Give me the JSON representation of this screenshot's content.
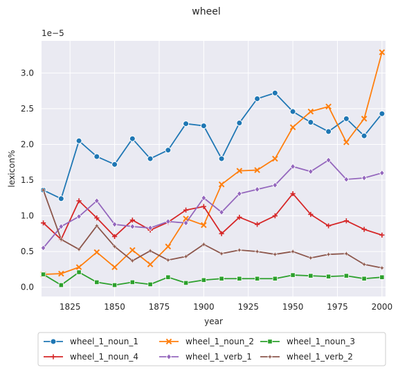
{
  "chart_data": {
    "type": "line",
    "title": "wheel",
    "xlabel": "year",
    "ylabel": "lexicon%",
    "y_scale_label": "1e−5",
    "xlim": [
      1809,
      2002
    ],
    "ylim": [
      -0.13,
      3.45
    ],
    "x_ticks": [
      1825,
      1850,
      1875,
      1900,
      1925,
      1950,
      1975,
      2000
    ],
    "y_ticks": [
      0.0,
      0.5,
      1.0,
      1.5,
      2.0,
      2.5,
      3.0
    ],
    "y_tick_labels": [
      "0.0",
      "0.5",
      "1.0",
      "1.5",
      "2.0",
      "2.5",
      "3.0"
    ],
    "grid": true,
    "legend_position": "bottom",
    "x": [
      1810,
      1820,
      1830,
      1840,
      1850,
      1860,
      1870,
      1880,
      1890,
      1900,
      1910,
      1920,
      1930,
      1940,
      1950,
      1960,
      1970,
      1980,
      1990,
      2000
    ],
    "series": [
      {
        "name": "wheel_1_noun_1",
        "color": "#1f77b4",
        "marker": "circle",
        "values": [
          1.36,
          1.24,
          2.05,
          1.83,
          1.72,
          2.08,
          1.8,
          1.92,
          2.29,
          2.26,
          1.8,
          2.3,
          2.64,
          2.72,
          2.46,
          2.31,
          2.18,
          2.36,
          2.12,
          2.43
        ]
      },
      {
        "name": "wheel_1_noun_2",
        "color": "#ff7f0e",
        "marker": "x",
        "values": [
          0.18,
          0.19,
          0.28,
          0.49,
          0.28,
          0.52,
          0.32,
          0.57,
          0.96,
          0.87,
          1.44,
          1.63,
          1.64,
          1.8,
          2.24,
          2.46,
          2.53,
          2.03,
          2.36,
          3.29
        ]
      },
      {
        "name": "wheel_1_noun_3",
        "color": "#2ca02c",
        "marker": "square",
        "values": [
          0.18,
          0.03,
          0.21,
          0.07,
          0.03,
          0.07,
          0.04,
          0.14,
          0.06,
          0.1,
          0.12,
          0.12,
          0.12,
          0.12,
          0.17,
          0.16,
          0.15,
          0.16,
          0.12,
          0.14
        ]
      },
      {
        "name": "wheel_1_noun_4",
        "color": "#d62728",
        "marker": "plus",
        "values": [
          0.9,
          0.67,
          1.21,
          0.97,
          0.71,
          0.94,
          0.8,
          0.91,
          1.08,
          1.13,
          0.75,
          0.98,
          0.88,
          1.0,
          1.31,
          1.02,
          0.86,
          0.93,
          0.81,
          0.73
        ]
      },
      {
        "name": "wheel_1_verb_1",
        "color": "#9467bd",
        "marker": "diamond",
        "values": [
          0.55,
          0.85,
          0.99,
          1.21,
          0.88,
          0.85,
          0.83,
          0.92,
          0.9,
          1.25,
          1.05,
          1.31,
          1.37,
          1.43,
          1.69,
          1.62,
          1.78,
          1.51,
          1.53,
          1.6
        ]
      },
      {
        "name": "wheel_1_verb_2",
        "color": "#8c564b",
        "marker": "star",
        "values": [
          1.36,
          0.67,
          0.53,
          0.86,
          0.57,
          0.37,
          0.51,
          0.38,
          0.43,
          0.6,
          0.47,
          0.52,
          0.5,
          0.46,
          0.5,
          0.41,
          0.46,
          0.47,
          0.32,
          0.27
        ]
      }
    ]
  }
}
